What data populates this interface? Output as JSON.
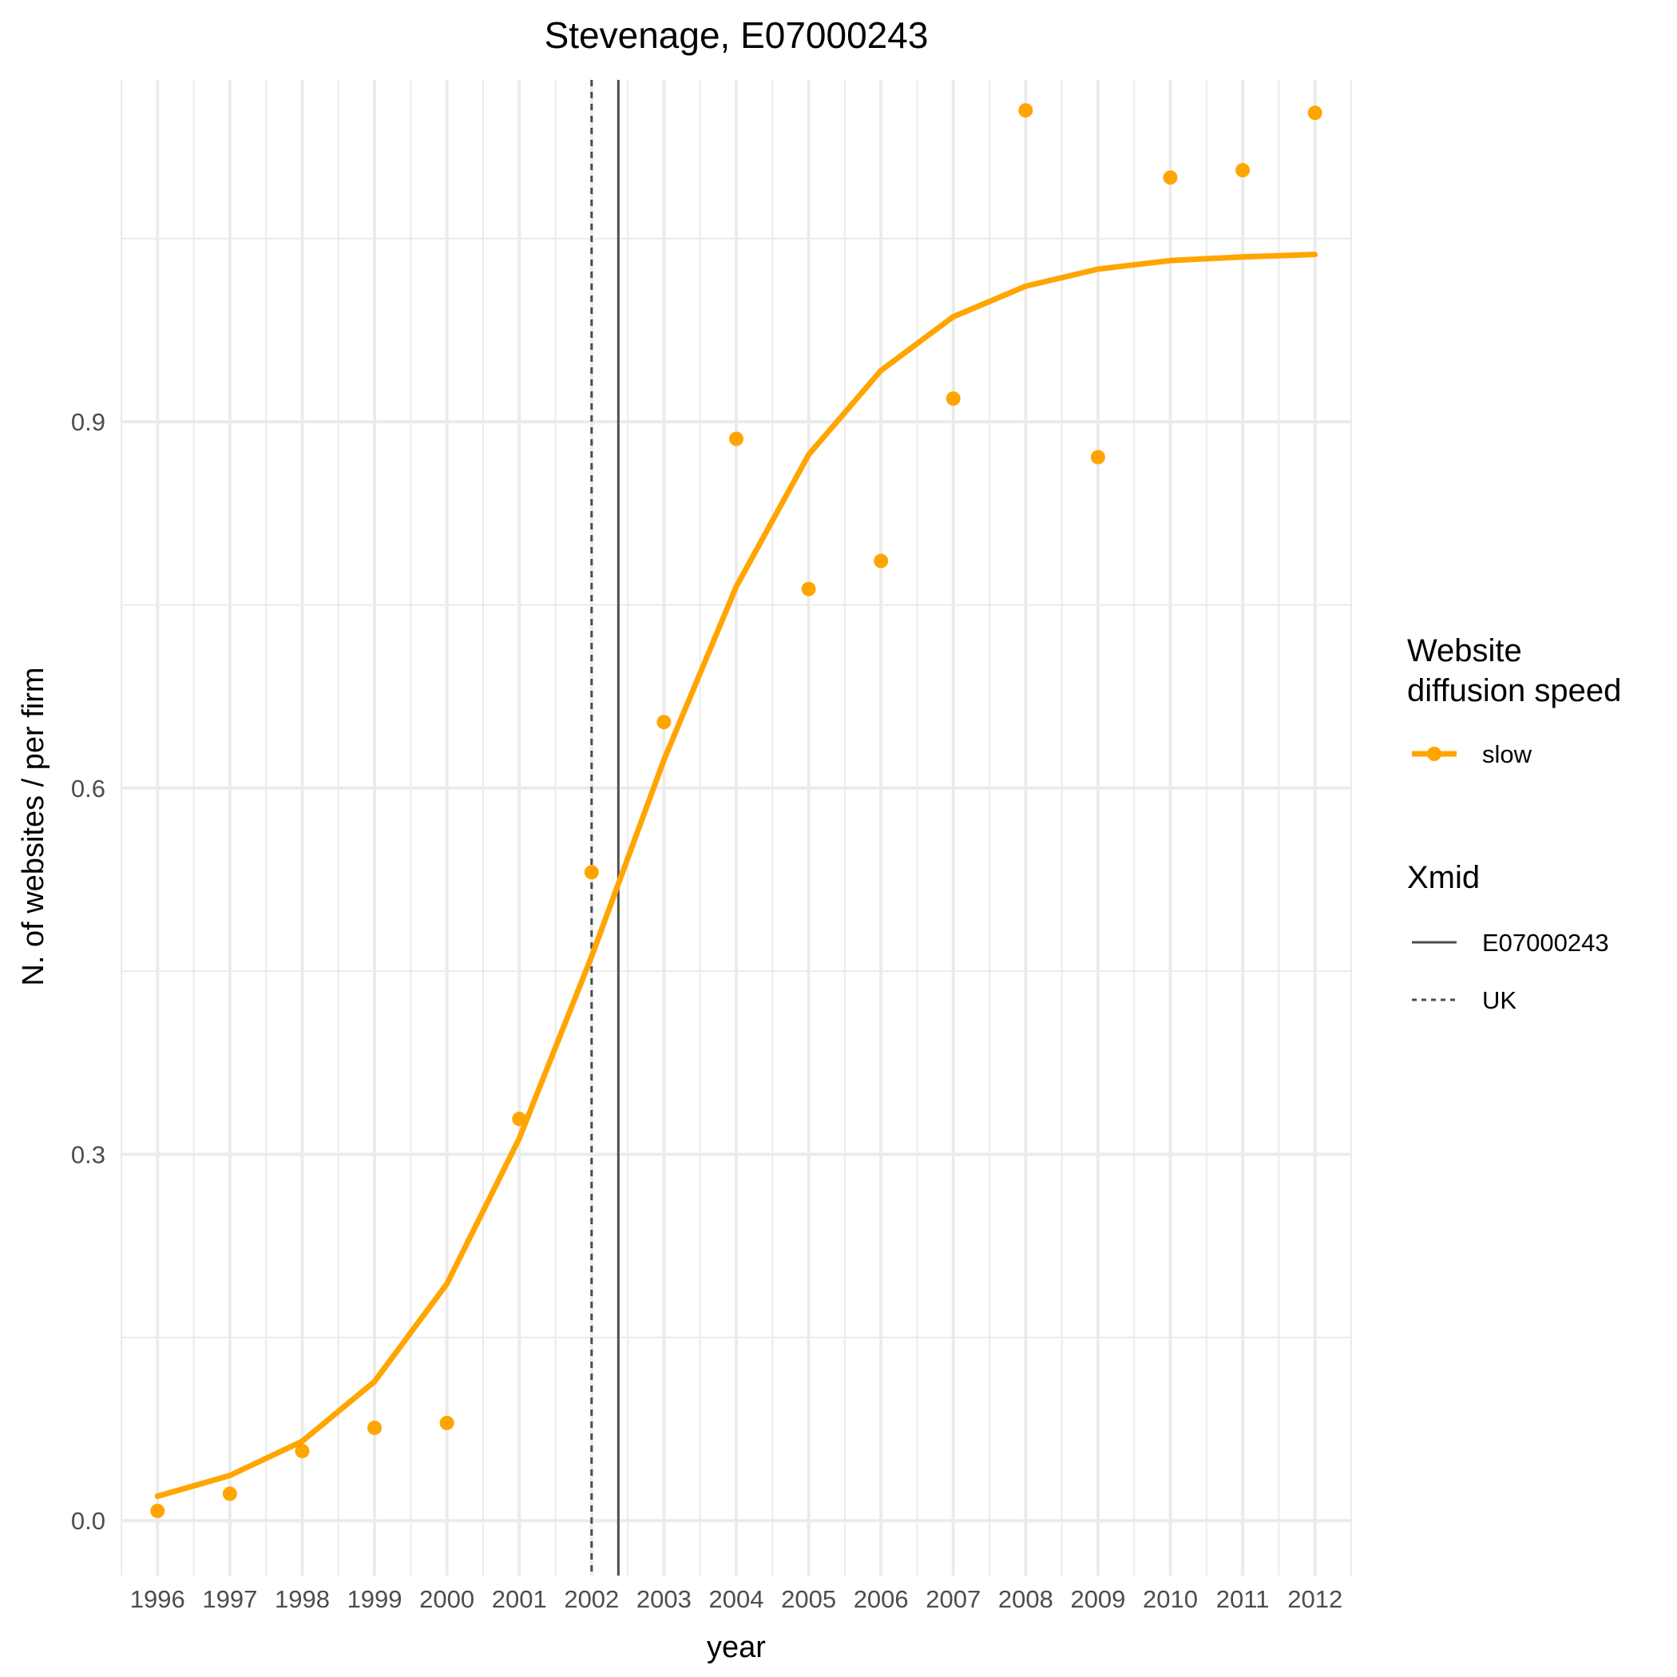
{
  "chart_data": {
    "type": "line",
    "title": "Stevenage, E07000243",
    "xlabel": "year",
    "ylabel": "N. of websites / per firm",
    "x": [
      1996,
      1997,
      1998,
      1999,
      2000,
      2001,
      2002,
      2003,
      2004,
      2005,
      2006,
      2007,
      2008,
      2009,
      2010,
      2011,
      2012
    ],
    "xlim": [
      1995.5,
      2012.5
    ],
    "ylim": [
      -0.045,
      1.18
    ],
    "yticks": [
      0.0,
      0.3,
      0.6,
      0.9
    ],
    "ytick_labels": [
      "0.0",
      "0.3",
      "0.6",
      "0.9"
    ],
    "grid": true,
    "series": [
      {
        "name": "slow",
        "color": "#FFA500",
        "points": [
          0.008,
          0.022,
          0.057,
          0.076,
          0.08,
          0.329,
          0.531,
          0.654,
          0.886,
          0.763,
          0.786,
          0.919,
          1.155,
          0.871,
          1.1,
          1.106,
          1.153
        ],
        "fitted": [
          0.02,
          0.037,
          0.065,
          0.114,
          0.194,
          0.313,
          0.462,
          0.623,
          0.765,
          0.873,
          0.942,
          0.986,
          1.011,
          1.025,
          1.032,
          1.035,
          1.037
        ]
      }
    ],
    "vlines": [
      {
        "name": "E07000243",
        "x": 2002.37,
        "linestyle": "solid",
        "color": "#4d4d4d"
      },
      {
        "name": "UK",
        "x": 2002.0,
        "linestyle": "dotted",
        "color": "#4d4d4d"
      }
    ],
    "legend": {
      "placement": "right",
      "groups": [
        {
          "title": "Website\ndiffusion speed",
          "entries": [
            "slow"
          ]
        },
        {
          "title": "Xmid",
          "entries": [
            "E07000243",
            "UK"
          ]
        }
      ]
    }
  }
}
